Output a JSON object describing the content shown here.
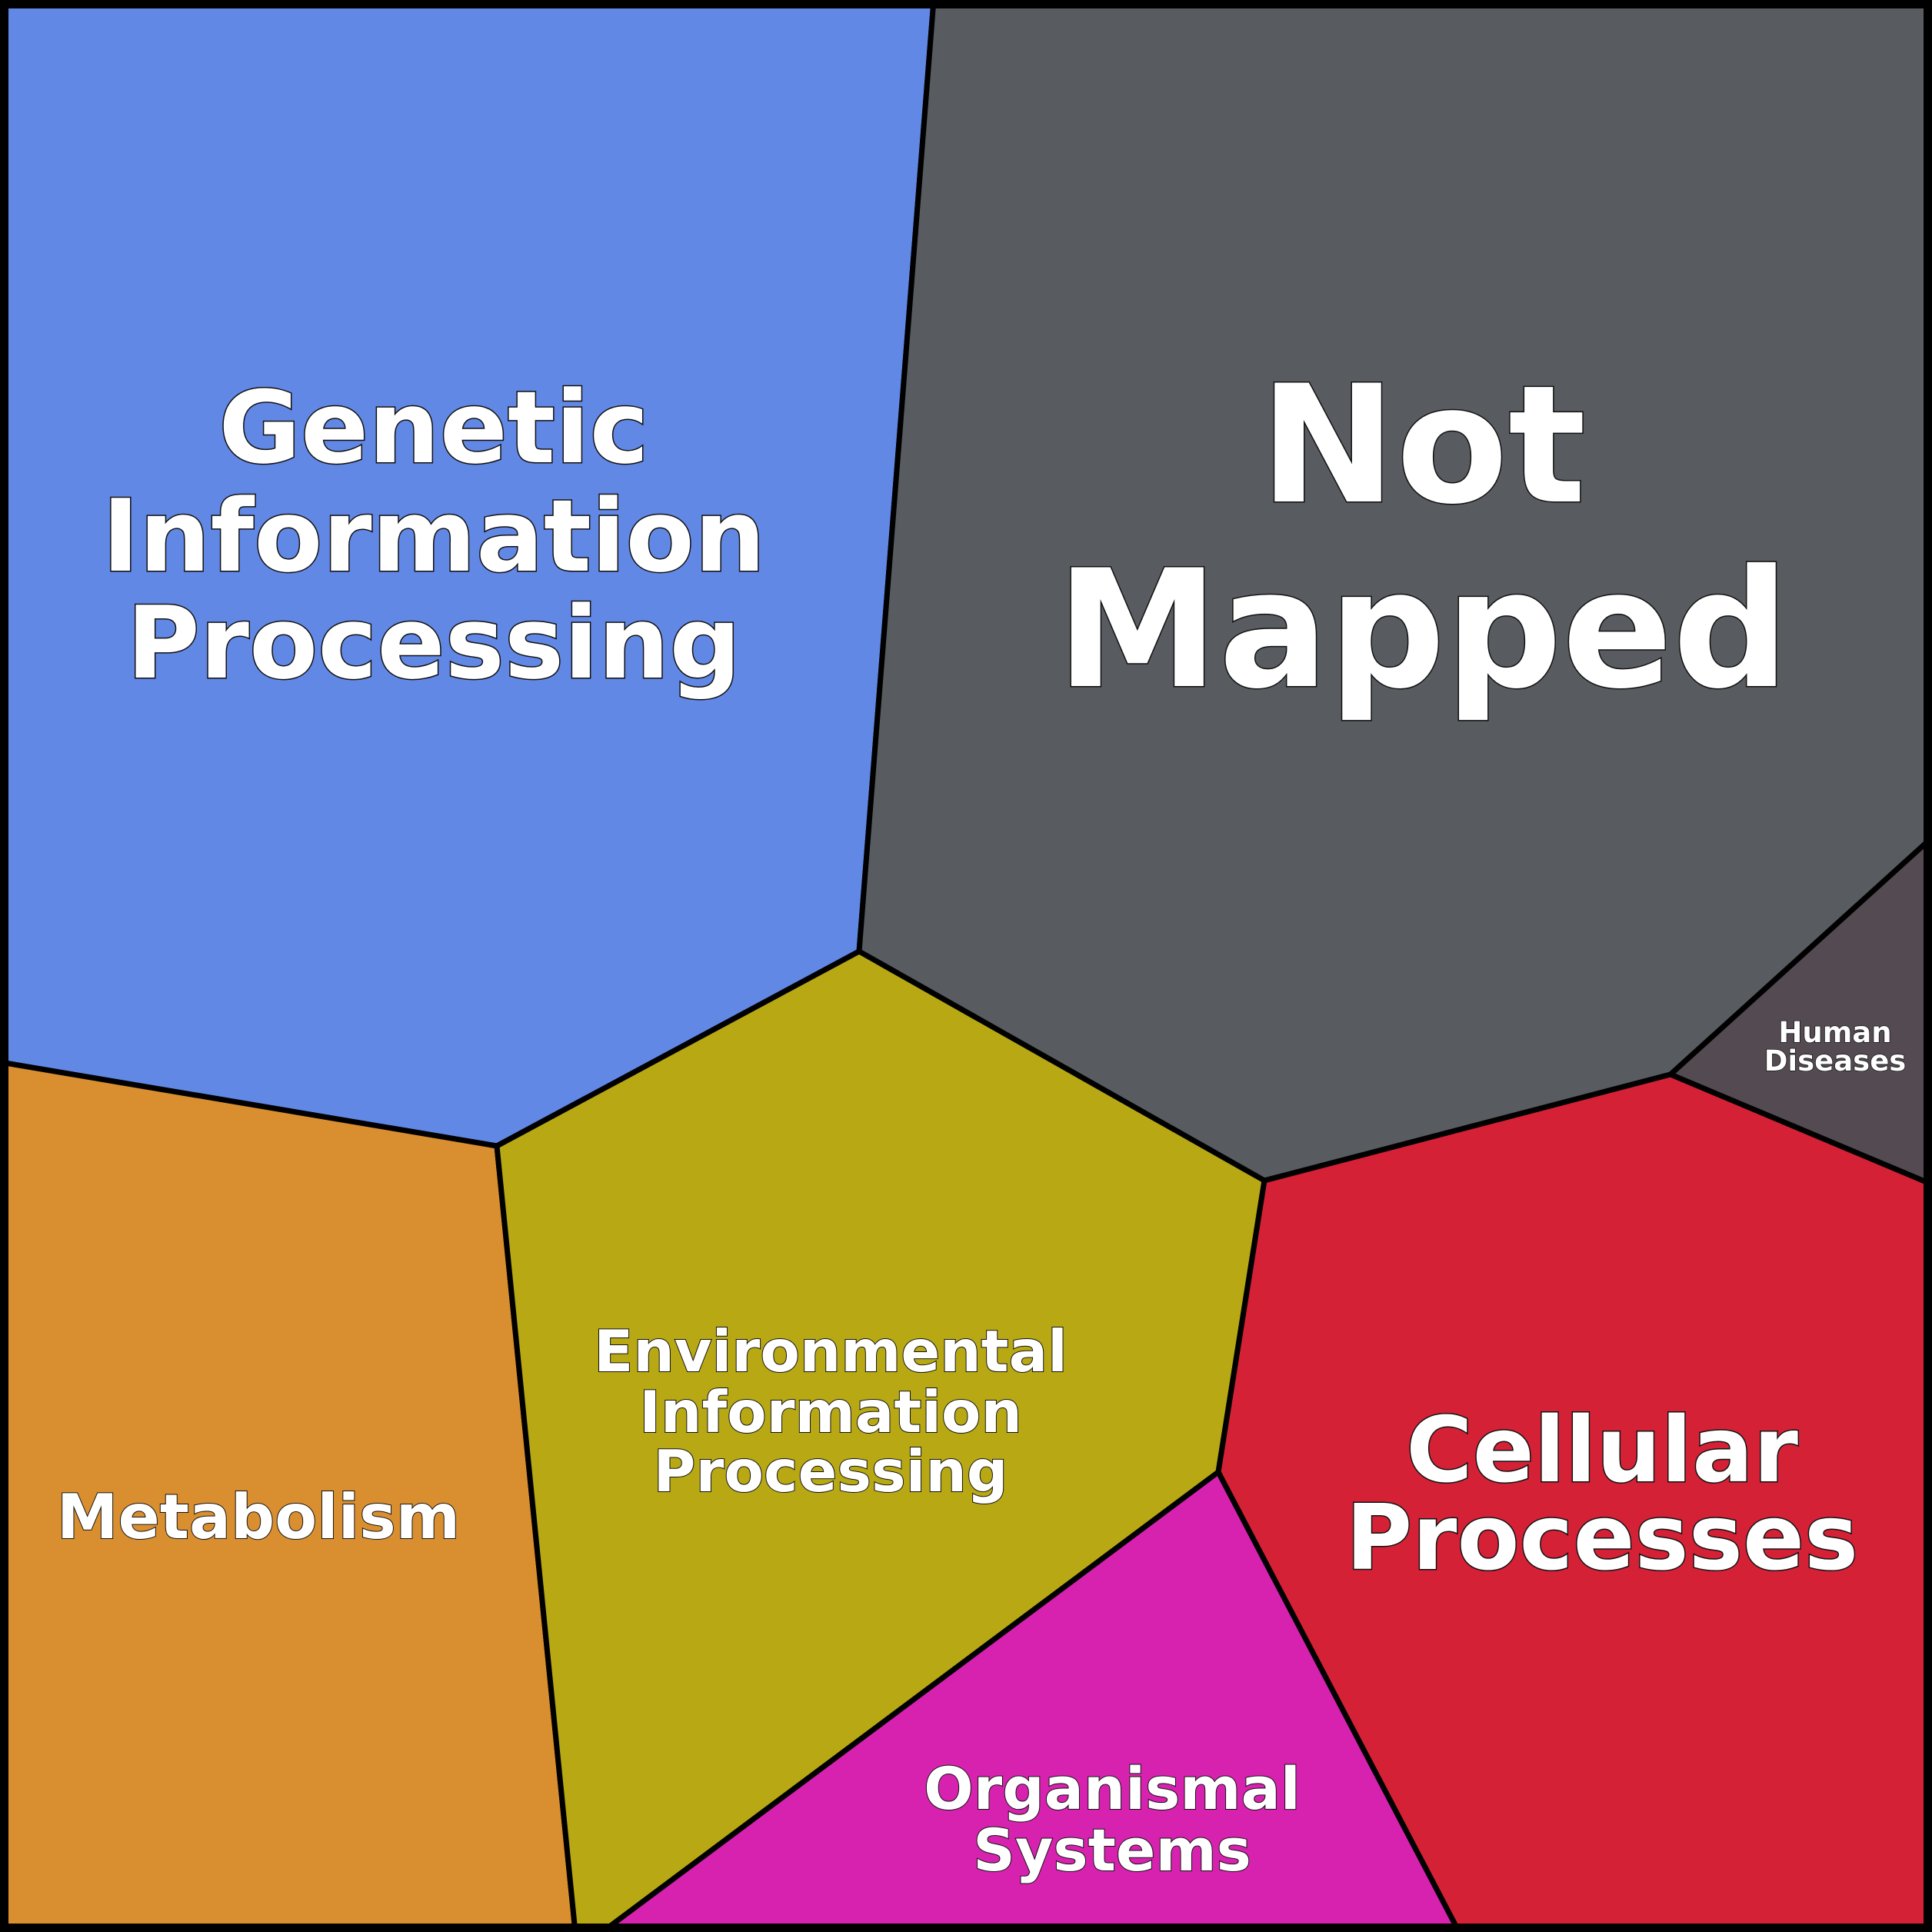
{
  "chart_data": {
    "type": "voronoi-treemap",
    "title": "",
    "cells": [
      {
        "key": "genetic",
        "label_lines": [
          "Genetic",
          "Information",
          "Processing"
        ],
        "color": "#6288E6"
      },
      {
        "key": "notmapped",
        "label_lines": [
          "Not",
          "Mapped"
        ],
        "color": "#585C60"
      },
      {
        "key": "human",
        "label_lines": [
          "Human",
          "Diseases"
        ],
        "color": "#544A52"
      },
      {
        "key": "metabolism",
        "label_lines": [
          "Metabolism"
        ],
        "color": "#D98F30"
      },
      {
        "key": "environmental",
        "label_lines": [
          "Environmental",
          "Information",
          "Processing"
        ],
        "color": "#B7A814"
      },
      {
        "key": "cellular",
        "label_lines": [
          "Cellular",
          "Processes"
        ],
        "color": "#D52136"
      },
      {
        "key": "organismal",
        "label_lines": [
          "Organismal",
          "Systems"
        ],
        "color": "#D722B0"
      }
    ],
    "border_color": "#000000",
    "label_color": "#FFFFFF"
  }
}
